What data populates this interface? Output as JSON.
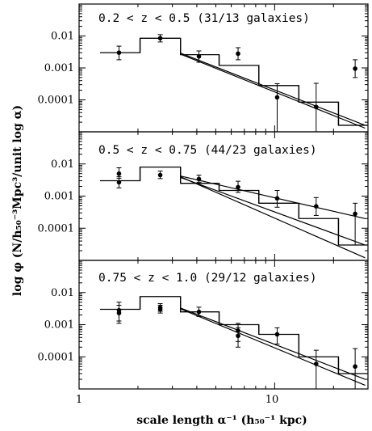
{
  "chart_data": {
    "type": "scatter",
    "xlabel": "scale length α⁻¹ (h₅₀⁻¹ kpc)",
    "ylabel": "log φ (N/h₅₀⁻³Mpc³/unit log α)",
    "x_scale": "log",
    "y_scale": "log",
    "xlim": [
      1,
      30
    ],
    "ylim": [
      1e-05,
      0.1
    ],
    "x_tick_labels": [
      "1",
      "10"
    ],
    "y_tick_labels": [
      "0.01",
      "0.001",
      "0.0001"
    ],
    "panels": [
      {
        "title": "0.2 < z < 0.5 (31/13 galaxies)",
        "histogram": {
          "edges": [
            1.28,
            2.05,
            3.3,
            5.2,
            8.3,
            13.3,
            21.2,
            30
          ],
          "values": [
            0.003,
            0.0085,
            0.0026,
            0.0012,
            0.00028,
            8.5e-05,
            1.6e-05
          ]
        },
        "points": [
          {
            "x": 1.6,
            "y": 0.003,
            "ylo": 0.0018,
            "yhi": 0.0048
          },
          {
            "x": 2.6,
            "y": 0.0085,
            "ylo": 0.0065,
            "yhi": 0.011
          },
          {
            "x": 4.1,
            "y": 0.0023,
            "ylo": 0.0015,
            "yhi": 0.0034
          },
          {
            "x": 6.5,
            "y": 0.0028,
            "ylo": 0.0018,
            "yhi": 0.0043
          },
          {
            "x": 10.3,
            "y": 0.00012,
            "ylo": 1e-05,
            "yhi": 0.00032
          },
          {
            "x": 16.3,
            "y": 6e-05,
            "ylo": 1e-05,
            "yhi": 0.00033
          },
          {
            "x": 25.8,
            "y": 0.00095,
            "ylo": 0.0005,
            "yhi": 0.0018
          }
        ],
        "fits": [
          {
            "x": [
              3.3,
              29
            ],
            "y": [
              0.0027,
              1.3e-05
            ]
          },
          {
            "x": [
              3.3,
              29
            ],
            "y": [
              0.0029,
              1.6e-05
            ]
          }
        ]
      },
      {
        "title": "0.5 < z < 0.75 (44/23 galaxies)",
        "histogram": {
          "edges": [
            1.28,
            2.05,
            3.3,
            5.2,
            8.3,
            13.3,
            21.2,
            30
          ],
          "values": [
            0.003,
            0.008,
            0.0025,
            0.0015,
            0.0006,
            0.0002,
            3e-05
          ]
        },
        "points": [
          {
            "x": 1.6,
            "y": 0.005,
            "ylo": 0.0036,
            "yhi": 0.0076
          },
          {
            "x": 1.6,
            "y": 0.0027,
            "ylo": 0.0018,
            "yhi": 0.004
          },
          {
            "x": 2.6,
            "y": 0.0045,
            "ylo": 0.0035,
            "yhi": 0.006
          },
          {
            "x": 4.1,
            "y": 0.0034,
            "ylo": 0.0027,
            "yhi": 0.0045
          },
          {
            "x": 6.5,
            "y": 0.0019,
            "ylo": 0.0013,
            "yhi": 0.0029
          },
          {
            "x": 10.3,
            "y": 0.00085,
            "ylo": 0.00045,
            "yhi": 0.0015
          },
          {
            "x": 16.3,
            "y": 0.00048,
            "ylo": 0.00025,
            "yhi": 0.0009
          },
          {
            "x": 25.8,
            "y": 0.00028,
            "ylo": 3e-05,
            "yhi": 0.0006
          }
        ],
        "fits": [
          {
            "x": [
              3.3,
              29
            ],
            "y": [
              0.0042,
              0.0002
            ]
          },
          {
            "x": [
              3.3,
              29
            ],
            "y": [
              0.0038,
              3e-05
            ]
          },
          {
            "x": [
              3.3,
              29
            ],
            "y": [
              0.004,
              1.2e-05
            ]
          }
        ]
      },
      {
        "title": "0.75 < z < 1.0 (29/12 galaxies)",
        "histogram": {
          "edges": [
            1.28,
            2.05,
            3.3,
            5.2,
            8.3,
            13.3,
            21.2,
            30
          ],
          "values": [
            0.003,
            0.0075,
            0.0025,
            0.001,
            0.0005,
            0.0001,
            3e-05
          ]
        },
        "points": [
          {
            "x": 1.6,
            "y": 0.0028,
            "ylo": 0.0013,
            "yhi": 0.005
          },
          {
            "x": 1.6,
            "y": 0.0023,
            "ylo": 0.0011,
            "yhi": 0.004
          },
          {
            "x": 2.6,
            "y": 0.0034,
            "ylo": 0.0026,
            "yhi": 0.0045
          },
          {
            "x": 2.6,
            "y": 0.003,
            "ylo": 0.0023,
            "yhi": 0.004
          },
          {
            "x": 4.1,
            "y": 0.0025,
            "ylo": 0.0018,
            "yhi": 0.0035
          },
          {
            "x": 6.5,
            "y": 0.00065,
            "ylo": 0.0003,
            "yhi": 0.0011
          },
          {
            "x": 6.5,
            "y": 0.00045,
            "ylo": 0.0002,
            "yhi": 0.0008
          },
          {
            "x": 10.3,
            "y": 0.0005,
            "ylo": 0.00025,
            "yhi": 0.0008
          },
          {
            "x": 16.3,
            "y": 6e-05,
            "ylo": 1e-05,
            "yhi": 0.00016
          },
          {
            "x": 25.8,
            "y": 5e-05,
            "ylo": 1e-05,
            "yhi": 0.00018
          }
        ],
        "fits": [
          {
            "x": [
              3.3,
              29
            ],
            "y": [
              0.0033,
              2e-05
            ]
          },
          {
            "x": [
              3.3,
              29
            ],
            "y": [
              0.0031,
              1.3e-05
            ]
          }
        ]
      }
    ]
  }
}
